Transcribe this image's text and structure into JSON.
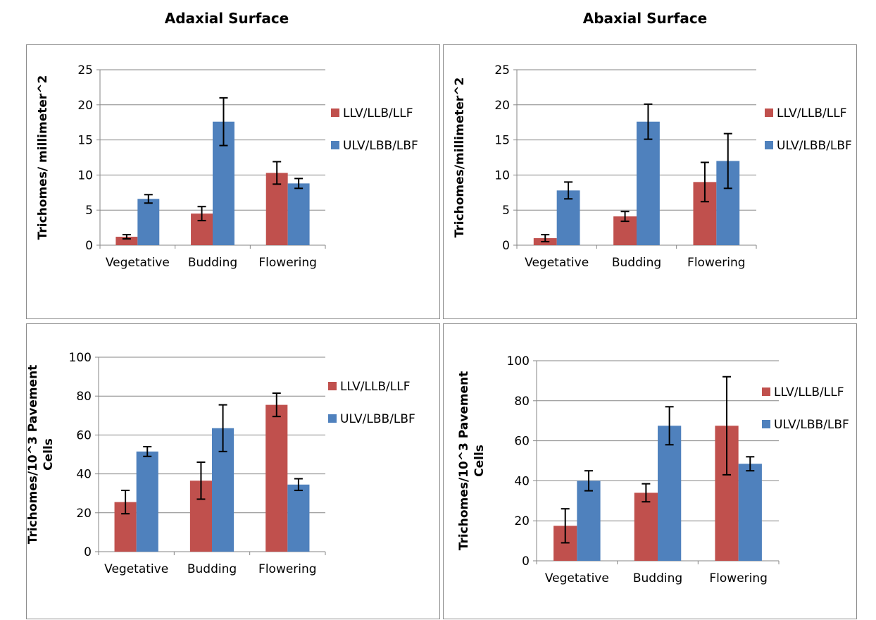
{
  "headings": [
    "Adaxial Surface",
    "Abaxial Surface"
  ],
  "colors": {
    "red": "#c0504d",
    "blue": "#4f81bd"
  },
  "chart_data": [
    {
      "type": "bar",
      "title": "",
      "categories": [
        "Vegetative",
        "Budding",
        "Flowering"
      ],
      "ylabel": "Trichomes/ millimeter^2",
      "ylabel_lines": [
        "Trichomes/ millimeter^2"
      ],
      "ylim": [
        0,
        25
      ],
      "yticks": [
        0,
        5,
        10,
        15,
        20,
        25
      ],
      "grid": true,
      "legend": "right",
      "series": [
        {
          "name": "LLV/LLB/LLF",
          "color": "#c0504d",
          "values": [
            1.2,
            4.5,
            10.3
          ],
          "errors": [
            0.3,
            1.0,
            1.6
          ]
        },
        {
          "name": "ULV/LBB/LBF",
          "color": "#4f81bd",
          "values": [
            6.6,
            17.6,
            8.8
          ],
          "errors": [
            0.6,
            3.4,
            0.7
          ]
        }
      ]
    },
    {
      "type": "bar",
      "title": "",
      "categories": [
        "Vegetative",
        "Budding",
        "Flowering"
      ],
      "ylabel": "Trichomes/millimeter^2",
      "ylabel_lines": [
        "Trichomes/millimeter^2"
      ],
      "ylim": [
        0,
        25
      ],
      "yticks": [
        0,
        5,
        10,
        15,
        20,
        25
      ],
      "grid": true,
      "legend": "right",
      "series": [
        {
          "name": "LLV/LLB/LLF",
          "color": "#c0504d",
          "values": [
            1.0,
            4.1,
            9.0
          ],
          "errors": [
            0.5,
            0.7,
            2.8
          ]
        },
        {
          "name": "ULV/LBB/LBF",
          "color": "#4f81bd",
          "values": [
            7.8,
            17.6,
            12.0
          ],
          "errors": [
            1.2,
            2.5,
            3.9
          ]
        }
      ]
    },
    {
      "type": "bar",
      "title": "",
      "categories": [
        "Vegetative",
        "Budding",
        "Flowering"
      ],
      "ylabel": "Trichomes/10^3 Pavement Cells",
      "ylabel_lines": [
        "Trichomes/10^3 Pavement",
        "Cells"
      ],
      "ylim": [
        0,
        100
      ],
      "yticks": [
        0,
        20,
        40,
        60,
        80,
        100
      ],
      "grid": true,
      "legend": "right",
      "series": [
        {
          "name": "LLV/LLB/LLF",
          "color": "#c0504d",
          "values": [
            25.5,
            36.5,
            75.5
          ],
          "errors": [
            6.0,
            9.5,
            6.0
          ]
        },
        {
          "name": "ULV/LBB/LBF",
          "color": "#4f81bd",
          "values": [
            51.5,
            63.5,
            34.5
          ],
          "errors": [
            2.5,
            12.0,
            3.0
          ]
        }
      ]
    },
    {
      "type": "bar",
      "title": "",
      "categories": [
        "Vegetative",
        "Budding",
        "Flowering"
      ],
      "ylabel": "Trichomes/10^3 Pavement Cells",
      "ylabel_lines": [
        "Trichomes/10^3 Pavement",
        "Cells"
      ],
      "ylim": [
        0,
        100
      ],
      "yticks": [
        0,
        20,
        40,
        60,
        80,
        100
      ],
      "grid": true,
      "legend": "right",
      "series": [
        {
          "name": "LLV/LLB/LLF",
          "color": "#c0504d",
          "values": [
            17.5,
            34.0,
            67.5
          ],
          "errors": [
            8.5,
            4.5,
            24.5
          ]
        },
        {
          "name": "ULV/LBB/LBF",
          "color": "#4f81bd",
          "values": [
            40.0,
            67.5,
            48.5
          ],
          "errors": [
            5.0,
            9.5,
            3.5
          ]
        }
      ]
    }
  ]
}
